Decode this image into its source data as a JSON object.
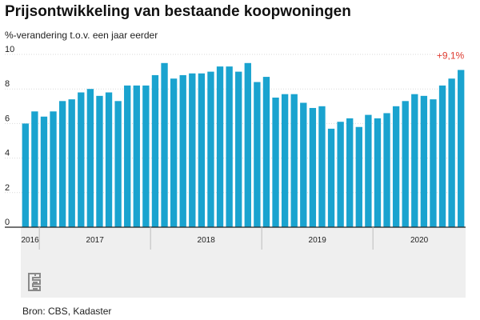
{
  "title": "Prijsontwikkeling van bestaande koopwoningen",
  "subtitle": "%-verandering t.o.v. een jaar eerder",
  "source": "Bron: CBS, Kadaster",
  "logo": "cbs-logo",
  "colors": {
    "bar": "#1aa3cf",
    "annotation": "#e03c31",
    "axis_band": "#efefef",
    "grid": "#d9d9d9"
  },
  "chart_data": {
    "type": "bar",
    "title": "Prijsontwikkeling van bestaande koopwoningen",
    "subtitle": "%-verandering t.o.v. een jaar eerder",
    "xlabel": "",
    "ylabel": "",
    "ylim": [
      0,
      10
    ],
    "yticks": [
      0,
      2,
      4,
      6,
      8,
      10
    ],
    "grid": true,
    "legend": "none",
    "categories": [
      "2016-11",
      "2016-12",
      "2017-01",
      "2017-02",
      "2017-03",
      "2017-04",
      "2017-05",
      "2017-06",
      "2017-07",
      "2017-08",
      "2017-09",
      "2017-10",
      "2017-11",
      "2017-12",
      "2018-01",
      "2018-02",
      "2018-03",
      "2018-04",
      "2018-05",
      "2018-06",
      "2018-07",
      "2018-08",
      "2018-09",
      "2018-10",
      "2018-11",
      "2018-12",
      "2019-01",
      "2019-02",
      "2019-03",
      "2019-04",
      "2019-05",
      "2019-06",
      "2019-07",
      "2019-08",
      "2019-09",
      "2019-10",
      "2019-11",
      "2019-12",
      "2020-01",
      "2020-02",
      "2020-03",
      "2020-04",
      "2020-05",
      "2020-06",
      "2020-07",
      "2020-08",
      "2020-09",
      "2020-10"
    ],
    "values": [
      6.0,
      6.7,
      6.4,
      6.7,
      7.3,
      7.4,
      7.8,
      8.0,
      7.6,
      7.8,
      7.3,
      8.2,
      8.2,
      8.2,
      8.8,
      9.5,
      8.6,
      8.8,
      8.9,
      8.9,
      9.0,
      9.3,
      9.3,
      9.0,
      9.5,
      8.4,
      8.7,
      7.5,
      7.7,
      7.7,
      7.2,
      6.9,
      7.0,
      5.7,
      6.1,
      6.3,
      5.8,
      6.5,
      6.3,
      6.6,
      7.0,
      7.3,
      7.7,
      7.6,
      7.4,
      8.2,
      8.6,
      9.1
    ],
    "years": [
      {
        "label": "2016",
        "start": 0,
        "end": 2
      },
      {
        "label": "2017",
        "start": 2,
        "end": 14
      },
      {
        "label": "2018",
        "start": 14,
        "end": 26
      },
      {
        "label": "2019",
        "start": 26,
        "end": 38
      },
      {
        "label": "2020",
        "start": 38,
        "end": 48
      }
    ],
    "annotations": [
      {
        "index": 47,
        "text": "+9,1%"
      }
    ]
  }
}
